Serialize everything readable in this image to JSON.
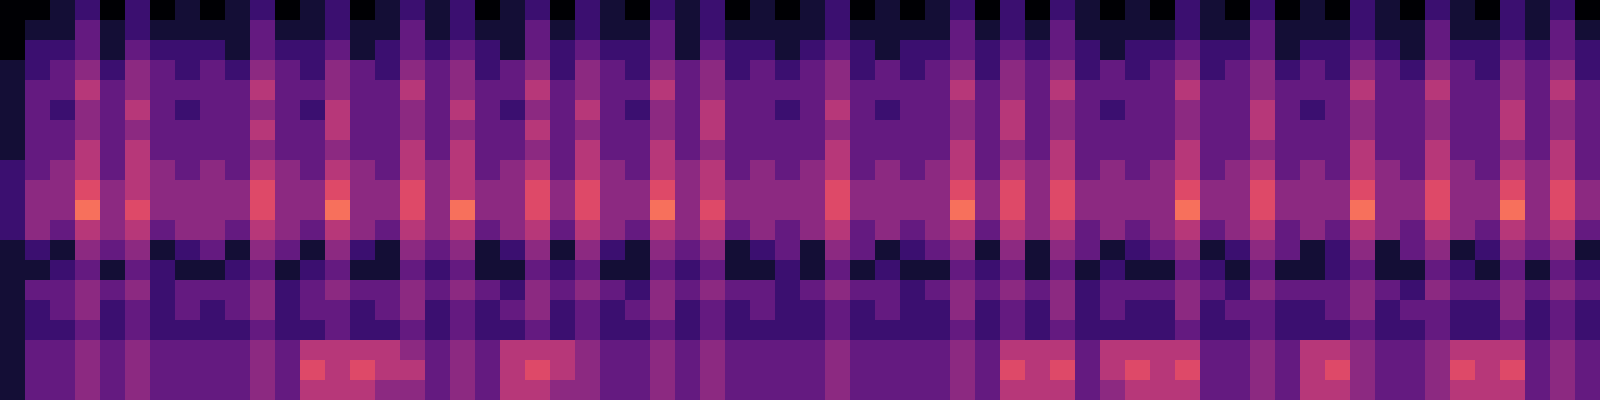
{
  "chart_data": {
    "type": "heatmap",
    "color": "magma",
    "tick_labels": false,
    "zlim": [
      0,
      10
    ],
    "z": [
      [
        0,
        0,
        1,
        2,
        0,
        2,
        0,
        1,
        0,
        1,
        2,
        0,
        1,
        2,
        0,
        1,
        2,
        1,
        2,
        0,
        1,
        2,
        0,
        2,
        1,
        0,
        2,
        1,
        2,
        0,
        1,
        0,
        1,
        2,
        0,
        1,
        0,
        1,
        2,
        0,
        2,
        0,
        2,
        1,
        0,
        1,
        0,
        2,
        1,
        0,
        2,
        0,
        1,
        0,
        2,
        1,
        0,
        2,
        1,
        0,
        2,
        1,
        2,
        0
      ],
      [
        0,
        1,
        1,
        3,
        1,
        2,
        1,
        1,
        1,
        1,
        3,
        1,
        1,
        2,
        1,
        1,
        3,
        1,
        2,
        1,
        1,
        3,
        1,
        2,
        1,
        1,
        3,
        1,
        2,
        1,
        1,
        1,
        1,
        2,
        1,
        1,
        1,
        1,
        3,
        1,
        2,
        1,
        3,
        1,
        1,
        1,
        1,
        2,
        1,
        1,
        3,
        1,
        1,
        1,
        2,
        1,
        1,
        3,
        1,
        1,
        2,
        1,
        3,
        1
      ],
      [
        0,
        2,
        2,
        3,
        1,
        3,
        2,
        2,
        2,
        1,
        3,
        2,
        2,
        3,
        1,
        2,
        3,
        2,
        3,
        2,
        1,
        3,
        2,
        3,
        2,
        2,
        3,
        1,
        3,
        2,
        2,
        1,
        2,
        3,
        2,
        1,
        2,
        2,
        3,
        2,
        3,
        2,
        3,
        2,
        1,
        2,
        2,
        3,
        2,
        2,
        3,
        1,
        2,
        2,
        3,
        2,
        1,
        3,
        2,
        2,
        3,
        2,
        3,
        2
      ],
      [
        1,
        2,
        3,
        4,
        2,
        4,
        3,
        2,
        3,
        2,
        4,
        3,
        2,
        4,
        3,
        2,
        4,
        3,
        4,
        2,
        3,
        4,
        2,
        4,
        3,
        2,
        4,
        3,
        4,
        2,
        3,
        2,
        3,
        4,
        2,
        3,
        2,
        3,
        4,
        2,
        4,
        3,
        4,
        2,
        3,
        2,
        3,
        4,
        2,
        3,
        4,
        2,
        3,
        2,
        4,
        3,
        2,
        4,
        3,
        2,
        4,
        3,
        4,
        2
      ],
      [
        1,
        3,
        3,
        5,
        3,
        4,
        3,
        3,
        3,
        3,
        5,
        3,
        3,
        4,
        3,
        3,
        5,
        3,
        4,
        3,
        3,
        5,
        3,
        4,
        3,
        3,
        5,
        3,
        4,
        3,
        3,
        3,
        3,
        4,
        3,
        3,
        3,
        3,
        5,
        3,
        4,
        3,
        5,
        3,
        3,
        3,
        3,
        5,
        3,
        3,
        4,
        3,
        3,
        3,
        5,
        3,
        3,
        5,
        3,
        3,
        4,
        3,
        5,
        3
      ],
      [
        1,
        3,
        2,
        4,
        3,
        5,
        3,
        2,
        3,
        3,
        4,
        3,
        2,
        5,
        3,
        3,
        4,
        3,
        5,
        3,
        2,
        4,
        3,
        5,
        3,
        2,
        4,
        3,
        5,
        3,
        3,
        2,
        3,
        5,
        3,
        2,
        3,
        3,
        4,
        3,
        5,
        3,
        4,
        3,
        2,
        3,
        3,
        4,
        3,
        3,
        5,
        3,
        2,
        3,
        4,
        3,
        3,
        4,
        3,
        3,
        5,
        3,
        4,
        3
      ],
      [
        1,
        3,
        3,
        4,
        3,
        4,
        3,
        3,
        3,
        3,
        5,
        3,
        3,
        5,
        3,
        3,
        4,
        3,
        4,
        3,
        3,
        5,
        3,
        4,
        3,
        3,
        4,
        3,
        5,
        3,
        3,
        3,
        3,
        4,
        3,
        3,
        3,
        3,
        4,
        3,
        5,
        3,
        4,
        3,
        3,
        3,
        3,
        4,
        3,
        3,
        5,
        3,
        3,
        3,
        4,
        3,
        3,
        4,
        3,
        3,
        5,
        3,
        4,
        3
      ],
      [
        1,
        3,
        3,
        5,
        3,
        5,
        3,
        3,
        3,
        3,
        4,
        3,
        3,
        4,
        3,
        3,
        5,
        3,
        5,
        3,
        3,
        4,
        3,
        5,
        3,
        3,
        5,
        3,
        4,
        3,
        3,
        3,
        3,
        5,
        3,
        3,
        3,
        3,
        5,
        3,
        4,
        3,
        5,
        3,
        3,
        3,
        3,
        5,
        3,
        3,
        4,
        3,
        3,
        3,
        5,
        3,
        3,
        5,
        3,
        3,
        4,
        3,
        5,
        3
      ],
      [
        2,
        3,
        4,
        5,
        3,
        5,
        4,
        3,
        4,
        3,
        5,
        4,
        3,
        5,
        4,
        3,
        5,
        4,
        5,
        3,
        4,
        5,
        3,
        5,
        4,
        3,
        5,
        4,
        5,
        3,
        4,
        3,
        4,
        5,
        3,
        4,
        3,
        4,
        5,
        3,
        5,
        4,
        5,
        3,
        4,
        3,
        4,
        5,
        3,
        4,
        5,
        3,
        4,
        3,
        5,
        4,
        3,
        5,
        4,
        3,
        5,
        4,
        5,
        3
      ],
      [
        2,
        4,
        4,
        6,
        4,
        5,
        4,
        4,
        4,
        4,
        6,
        4,
        4,
        6,
        4,
        4,
        6,
        4,
        5,
        4,
        4,
        6,
        4,
        6,
        4,
        4,
        6,
        4,
        5,
        4,
        4,
        4,
        4,
        6,
        4,
        4,
        4,
        4,
        6,
        4,
        6,
        4,
        6,
        4,
        4,
        4,
        4,
        6,
        4,
        4,
        6,
        4,
        4,
        4,
        6,
        4,
        4,
        6,
        4,
        4,
        6,
        4,
        6,
        4
      ],
      [
        2,
        4,
        4,
        7,
        4,
        6,
        4,
        4,
        4,
        4,
        6,
        4,
        4,
        7,
        4,
        4,
        6,
        4,
        7,
        4,
        4,
        6,
        4,
        6,
        4,
        4,
        7,
        4,
        6,
        4,
        4,
        4,
        4,
        6,
        4,
        4,
        4,
        4,
        7,
        4,
        6,
        4,
        6,
        4,
        4,
        4,
        4,
        7,
        4,
        4,
        6,
        4,
        4,
        4,
        7,
        4,
        4,
        6,
        4,
        4,
        7,
        4,
        6,
        4
      ],
      [
        2,
        4,
        3,
        5,
        4,
        5,
        3,
        4,
        4,
        3,
        5,
        4,
        3,
        5,
        4,
        3,
        5,
        4,
        5,
        3,
        4,
        5,
        3,
        5,
        4,
        3,
        5,
        4,
        5,
        3,
        4,
        3,
        4,
        5,
        3,
        4,
        3,
        4,
        5,
        3,
        5,
        4,
        5,
        3,
        4,
        3,
        4,
        5,
        3,
        4,
        5,
        3,
        4,
        3,
        5,
        4,
        3,
        5,
        4,
        3,
        5,
        4,
        5,
        3
      ],
      [
        1,
        2,
        1,
        4,
        3,
        4,
        1,
        2,
        3,
        1,
        4,
        3,
        1,
        4,
        2,
        1,
        4,
        3,
        4,
        1,
        2,
        4,
        1,
        4,
        2,
        1,
        4,
        3,
        4,
        1,
        2,
        3,
        1,
        4,
        3,
        1,
        2,
        3,
        4,
        1,
        4,
        1,
        4,
        3,
        1,
        2,
        3,
        4,
        1,
        2,
        4,
        3,
        1,
        2,
        4,
        1,
        3,
        4,
        1,
        2,
        4,
        3,
        4,
        1
      ],
      [
        1,
        1,
        2,
        3,
        1,
        3,
        2,
        1,
        1,
        2,
        3,
        1,
        2,
        3,
        1,
        1,
        3,
        2,
        3,
        1,
        1,
        3,
        2,
        3,
        1,
        1,
        3,
        2,
        3,
        1,
        1,
        2,
        1,
        3,
        1,
        2,
        1,
        1,
        3,
        2,
        3,
        1,
        3,
        1,
        2,
        1,
        1,
        3,
        2,
        1,
        3,
        1,
        1,
        2,
        3,
        1,
        1,
        3,
        2,
        1,
        3,
        1,
        3,
        2
      ],
      [
        1,
        3,
        3,
        4,
        3,
        4,
        2,
        3,
        3,
        3,
        4,
        2,
        3,
        4,
        3,
        3,
        4,
        3,
        4,
        3,
        2,
        4,
        3,
        4,
        3,
        2,
        4,
        3,
        4,
        3,
        3,
        2,
        3,
        4,
        3,
        3,
        2,
        3,
        4,
        3,
        4,
        3,
        4,
        2,
        3,
        3,
        3,
        4,
        3,
        2,
        4,
        3,
        3,
        3,
        4,
        3,
        2,
        4,
        3,
        3,
        4,
        3,
        4,
        3
      ],
      [
        1,
        2,
        3,
        4,
        2,
        3,
        2,
        3,
        2,
        3,
        4,
        2,
        3,
        3,
        2,
        3,
        4,
        2,
        3,
        2,
        3,
        4,
        2,
        3,
        2,
        3,
        4,
        2,
        3,
        2,
        3,
        2,
        2,
        3,
        2,
        3,
        2,
        2,
        4,
        2,
        3,
        2,
        4,
        2,
        3,
        2,
        2,
        4,
        2,
        3,
        3,
        2,
        2,
        3,
        4,
        2,
        3,
        3,
        2,
        2,
        4,
        2,
        3,
        2
      ],
      [
        1,
        2,
        2,
        3,
        2,
        3,
        2,
        2,
        2,
        2,
        3,
        2,
        2,
        3,
        2,
        2,
        3,
        2,
        3,
        2,
        2,
        3,
        2,
        3,
        2,
        2,
        3,
        2,
        3,
        2,
        2,
        2,
        2,
        3,
        2,
        2,
        2,
        2,
        3,
        2,
        3,
        2,
        3,
        2,
        2,
        2,
        2,
        3,
        2,
        2,
        3,
        2,
        2,
        2,
        3,
        2,
        2,
        3,
        2,
        2,
        3,
        2,
        3,
        2
      ],
      [
        1,
        3,
        3,
        4,
        3,
        4,
        3,
        3,
        3,
        3,
        4,
        3,
        5,
        5,
        5,
        5,
        4,
        3,
        4,
        3,
        5,
        5,
        5,
        4,
        3,
        3,
        4,
        3,
        4,
        3,
        3,
        3,
        3,
        4,
        3,
        3,
        3,
        3,
        4,
        3,
        5,
        5,
        5,
        3,
        5,
        5,
        5,
        5,
        3,
        3,
        4,
        3,
        5,
        5,
        4,
        3,
        3,
        4,
        5,
        5,
        5,
        3,
        4,
        3
      ],
      [
        1,
        3,
        3,
        4,
        3,
        4,
        3,
        3,
        3,
        3,
        4,
        3,
        6,
        5,
        6,
        5,
        5,
        3,
        4,
        3,
        5,
        6,
        5,
        4,
        3,
        3,
        4,
        3,
        4,
        3,
        3,
        3,
        3,
        4,
        3,
        3,
        3,
        3,
        4,
        3,
        6,
        5,
        6,
        3,
        5,
        6,
        5,
        6,
        3,
        3,
        4,
        3,
        5,
        6,
        4,
        3,
        3,
        4,
        6,
        5,
        6,
        3,
        4,
        3
      ],
      [
        1,
        3,
        3,
        4,
        3,
        4,
        3,
        3,
        3,
        3,
        4,
        3,
        5,
        5,
        5,
        4,
        4,
        3,
        4,
        3,
        5,
        5,
        4,
        4,
        3,
        3,
        4,
        3,
        4,
        3,
        3,
        3,
        3,
        4,
        3,
        3,
        3,
        3,
        4,
        3,
        5,
        5,
        5,
        3,
        4,
        5,
        5,
        5,
        3,
        3,
        4,
        3,
        5,
        5,
        4,
        3,
        3,
        4,
        5,
        5,
        5,
        3,
        4,
        3
      ]
    ]
  }
}
